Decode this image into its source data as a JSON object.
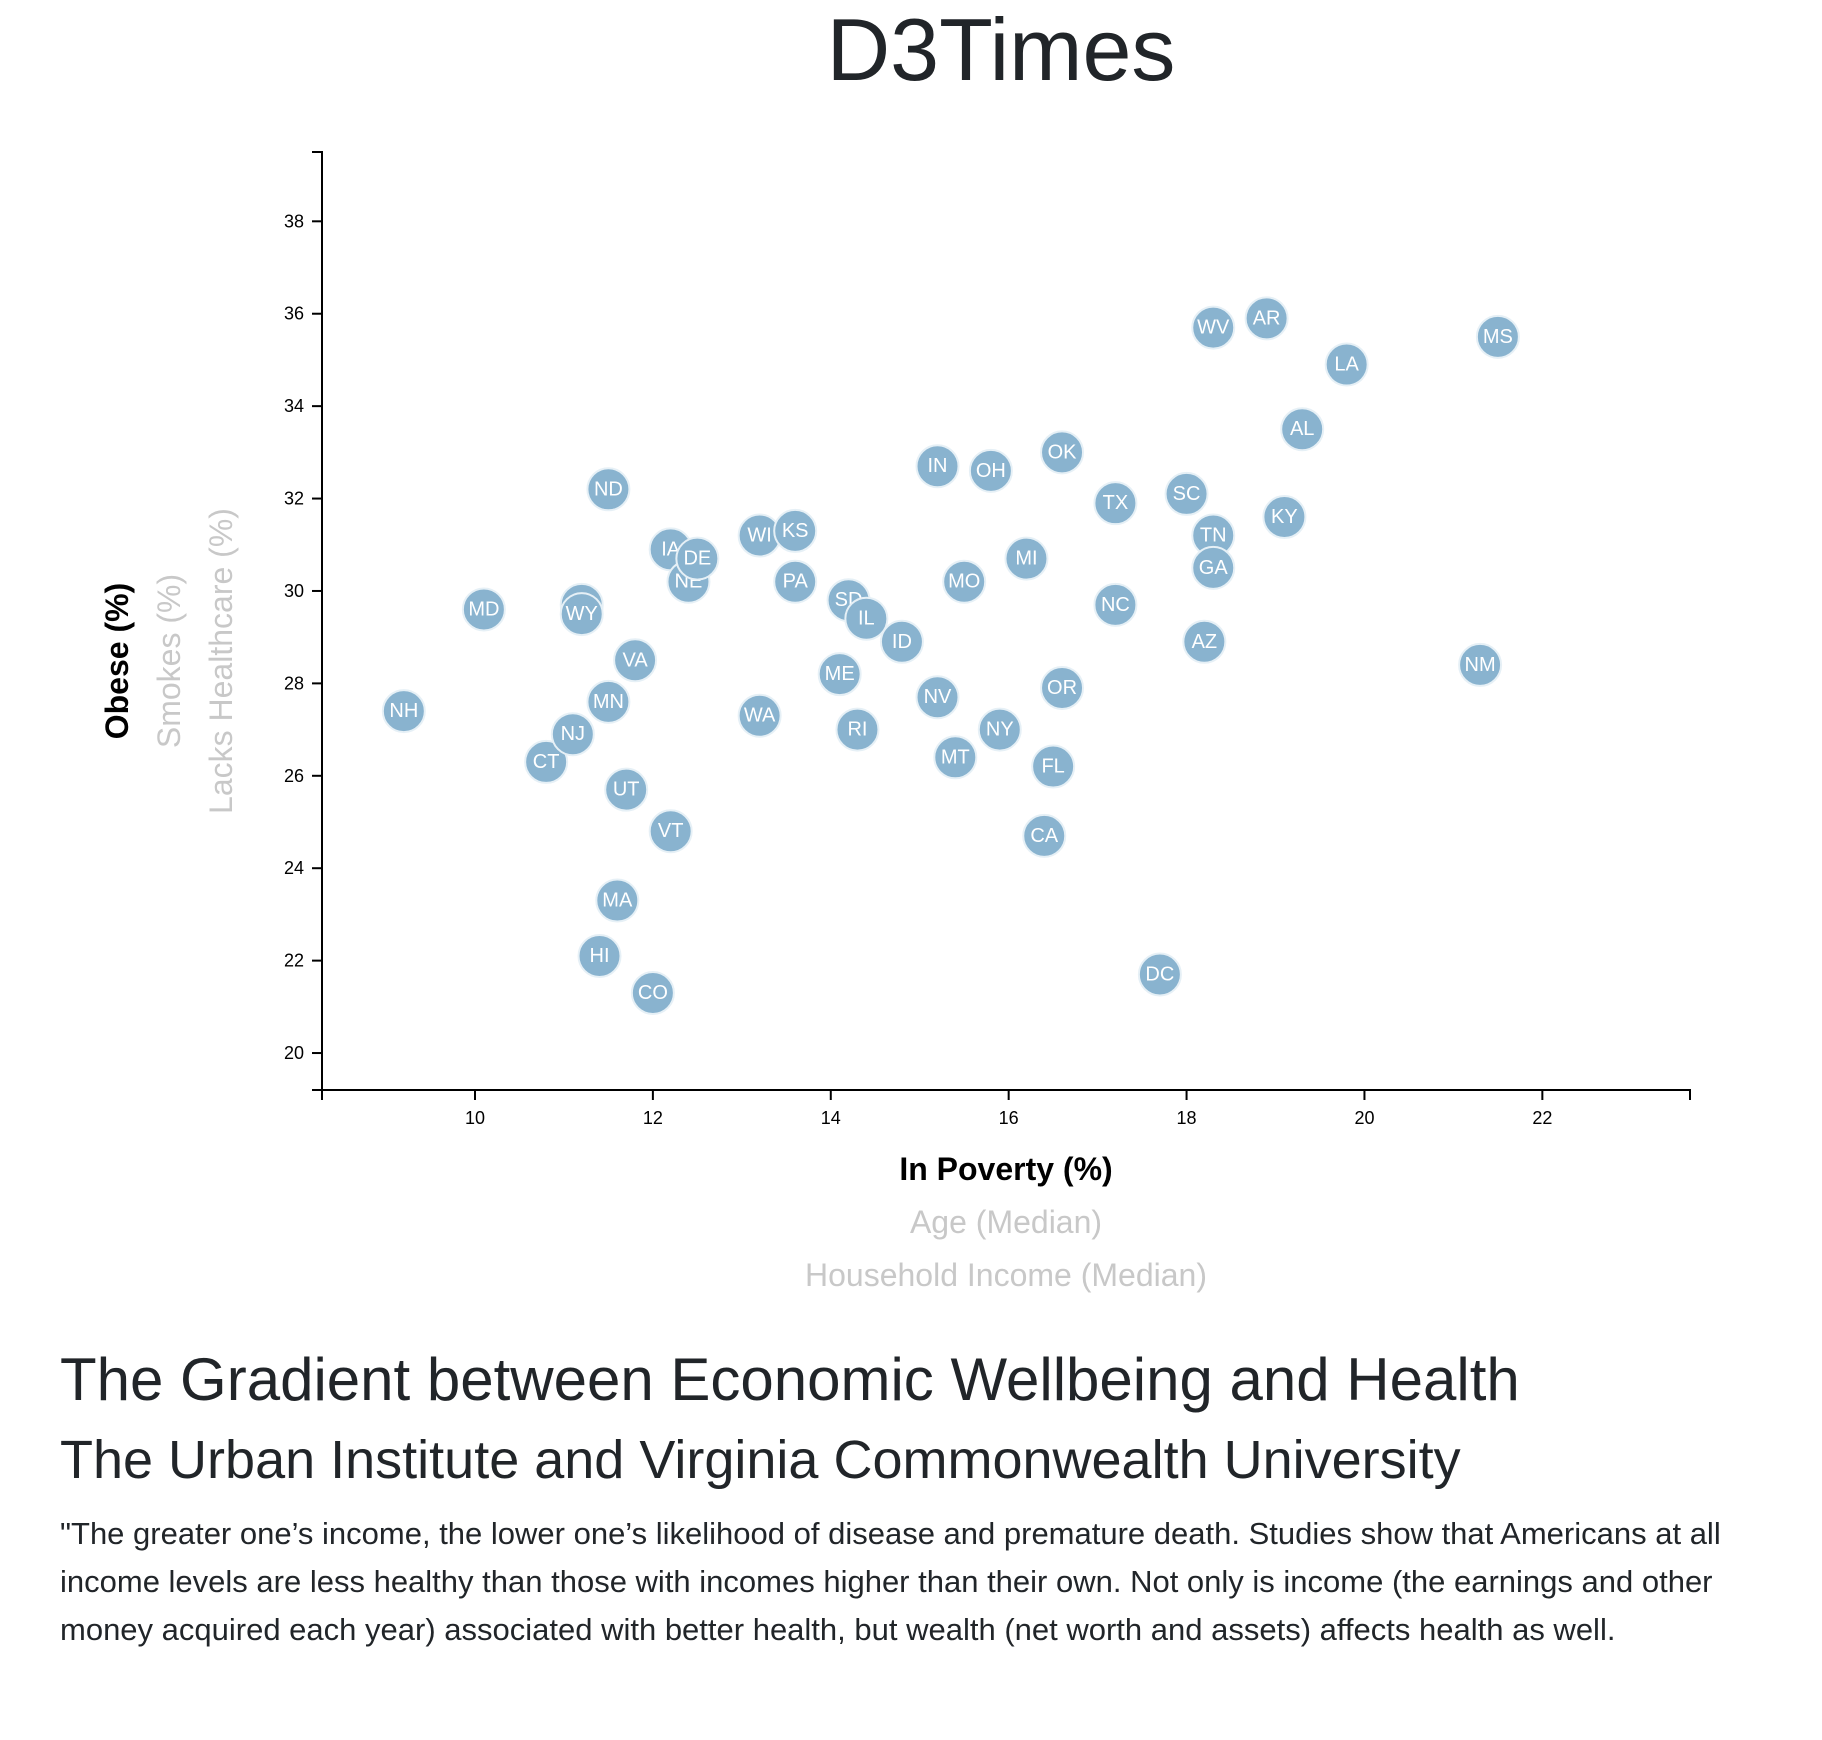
{
  "header": {
    "site_title": "D3Times"
  },
  "chart_data": {
    "type": "scatter",
    "x_axis": {
      "ticks": [
        10,
        12,
        14,
        16,
        18,
        20,
        22
      ],
      "range": [
        8.28,
        23.66
      ],
      "options": [
        {
          "label": "In Poverty (%)",
          "active": true
        },
        {
          "label": "Age (Median)",
          "active": false
        },
        {
          "label": "Household Income (Median)",
          "active": false
        }
      ]
    },
    "y_axis": {
      "ticks": [
        20,
        22,
        24,
        26,
        28,
        30,
        32,
        34,
        36,
        38
      ],
      "range": [
        19.2,
        39.5
      ],
      "options": [
        {
          "label": "Obese (%)",
          "active": true
        },
        {
          "label": "Smokes (%)",
          "active": false
        },
        {
          "label": "Lacks Healthcare (%)",
          "active": false
        }
      ]
    },
    "points": [
      {
        "state": "NH",
        "x": 9.2,
        "y": 27.4
      },
      {
        "state": "MD",
        "x": 10.1,
        "y": 29.6
      },
      {
        "state": "CT",
        "x": 10.8,
        "y": 26.3
      },
      {
        "state": "NJ",
        "x": 11.1,
        "y": 26.9
      },
      {
        "state": "AK",
        "x": 11.2,
        "y": 29.7
      },
      {
        "state": "WY",
        "x": 11.2,
        "y": 29.5
      },
      {
        "state": "HI",
        "x": 11.4,
        "y": 22.1
      },
      {
        "state": "MA",
        "x": 11.6,
        "y": 23.3
      },
      {
        "state": "ND",
        "x": 11.5,
        "y": 32.2
      },
      {
        "state": "MN",
        "x": 11.5,
        "y": 27.6
      },
      {
        "state": "UT",
        "x": 11.7,
        "y": 25.7
      },
      {
        "state": "VA",
        "x": 11.8,
        "y": 28.5
      },
      {
        "state": "CO",
        "x": 12.0,
        "y": 21.3
      },
      {
        "state": "IA",
        "x": 12.2,
        "y": 30.9
      },
      {
        "state": "VT",
        "x": 12.2,
        "y": 24.8
      },
      {
        "state": "NE",
        "x": 12.4,
        "y": 30.2
      },
      {
        "state": "DE",
        "x": 12.5,
        "y": 30.7
      },
      {
        "state": "WI",
        "x": 13.2,
        "y": 31.2
      },
      {
        "state": "WA",
        "x": 13.2,
        "y": 27.3
      },
      {
        "state": "KS",
        "x": 13.6,
        "y": 31.3
      },
      {
        "state": "PA",
        "x": 13.6,
        "y": 30.2
      },
      {
        "state": "ME",
        "x": 14.1,
        "y": 28.2
      },
      {
        "state": "SD",
        "x": 14.2,
        "y": 29.8
      },
      {
        "state": "RI",
        "x": 14.3,
        "y": 27.0
      },
      {
        "state": "IL",
        "x": 14.4,
        "y": 29.4
      },
      {
        "state": "ID",
        "x": 14.8,
        "y": 28.9
      },
      {
        "state": "IN",
        "x": 15.2,
        "y": 32.7
      },
      {
        "state": "NV",
        "x": 15.2,
        "y": 27.7
      },
      {
        "state": "MT",
        "x": 15.4,
        "y": 26.4
      },
      {
        "state": "MO",
        "x": 15.5,
        "y": 30.2
      },
      {
        "state": "OH",
        "x": 15.8,
        "y": 32.6
      },
      {
        "state": "NY",
        "x": 15.9,
        "y": 27.0
      },
      {
        "state": "MI",
        "x": 16.2,
        "y": 30.7
      },
      {
        "state": "CA",
        "x": 16.4,
        "y": 24.7
      },
      {
        "state": "FL",
        "x": 16.5,
        "y": 26.2
      },
      {
        "state": "OK",
        "x": 16.6,
        "y": 33.0
      },
      {
        "state": "OR",
        "x": 16.6,
        "y": 27.9
      },
      {
        "state": "TX",
        "x": 17.2,
        "y": 31.9
      },
      {
        "state": "NC",
        "x": 17.2,
        "y": 29.7
      },
      {
        "state": "DC",
        "x": 17.7,
        "y": 21.7
      },
      {
        "state": "SC",
        "x": 18.0,
        "y": 32.1
      },
      {
        "state": "AZ",
        "x": 18.2,
        "y": 28.9
      },
      {
        "state": "WV",
        "x": 18.3,
        "y": 35.7
      },
      {
        "state": "TN",
        "x": 18.3,
        "y": 31.2
      },
      {
        "state": "GA",
        "x": 18.3,
        "y": 30.5
      },
      {
        "state": "AR",
        "x": 18.9,
        "y": 35.9
      },
      {
        "state": "KY",
        "x": 19.1,
        "y": 31.6
      },
      {
        "state": "AL",
        "x": 19.3,
        "y": 33.5
      },
      {
        "state": "LA",
        "x": 19.8,
        "y": 34.9
      },
      {
        "state": "NM",
        "x": 21.3,
        "y": 28.4
      },
      {
        "state": "MS",
        "x": 21.5,
        "y": 35.5
      }
    ]
  },
  "colors": {
    "marker_fill": "#89b3cf",
    "marker_stroke": "#e6f0f6",
    "inactive_label": "#c8c8c8"
  },
  "article": {
    "heading": "The Gradient between Economic Wellbeing and Health",
    "subheading": "The Urban Institute and Virginia Commonwealth University",
    "quote": "\"The greater one’s income, the lower one’s likelihood of disease and premature death. Studies show that Americans at all income levels are less healthy than those with incomes higher than their own. Not only is income (the earnings and other money acquired each year) associated with better health, but wealth (net worth and assets) affects health as well."
  }
}
